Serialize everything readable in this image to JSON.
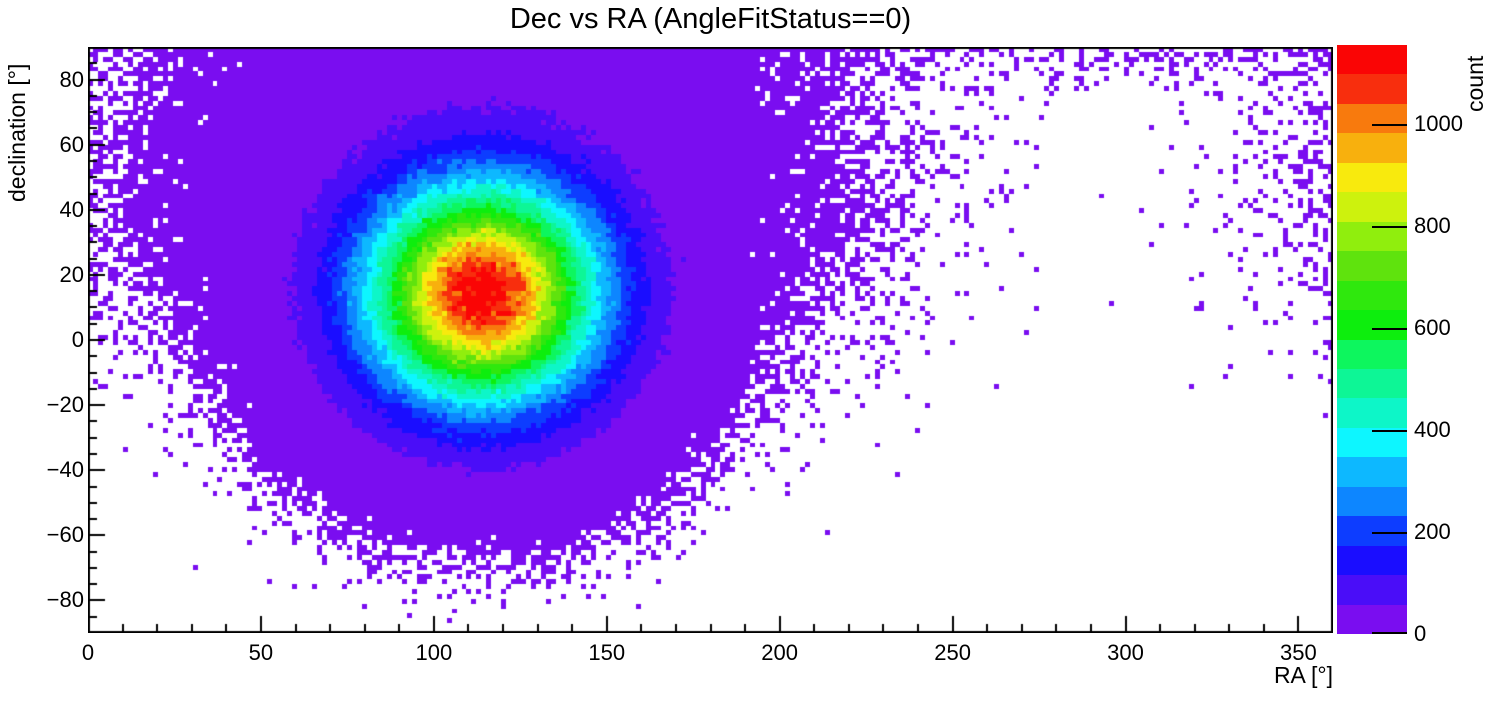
{
  "chart_data": {
    "type": "heatmap",
    "title": "Dec vs RA (AngleFitStatus==0)",
    "xlabel": "RA [°]",
    "ylabel": "declination [°]",
    "zlabel": "count",
    "x_range": [
      0,
      360
    ],
    "y_range": [
      -90,
      90
    ],
    "z_range": [
      0,
      1155
    ],
    "x_major_ticks": [
      0,
      50,
      100,
      150,
      200,
      250,
      300,
      350
    ],
    "x_major_labels": [
      "0",
      "50",
      "100",
      "150",
      "200",
      "250",
      "300",
      "350"
    ],
    "x_minor_step": 10,
    "y_major_ticks": [
      -80,
      -60,
      -40,
      -20,
      0,
      20,
      40,
      60,
      80
    ],
    "y_major_labels": [
      "−80",
      "−60",
      "−40",
      "−20",
      "0",
      "20",
      "40",
      "60",
      "80"
    ],
    "y_minor_step": 5,
    "z_major_ticks": [
      0,
      200,
      400,
      600,
      800,
      1000
    ],
    "z_major_labels": [
      "0",
      "200",
      "400",
      "600",
      "800",
      "1000"
    ],
    "n_levels": 20,
    "palette": [
      "#7a0df0",
      "#4a0df8",
      "#1a0dff",
      "#0d3dff",
      "#0d86ff",
      "#0db8ff",
      "#0df6ff",
      "#0df6c8",
      "#0df696",
      "#0df65e",
      "#0dee0d",
      "#2fe80d",
      "#5fe30d",
      "#90ee0d",
      "#cdf20d",
      "#f8ea0d",
      "#f8b00d",
      "#f87a0d",
      "#f82e0d",
      "#fa0505"
    ],
    "frame_color": "#000000",
    "background_color": "#ffffff",
    "bins": {
      "nx": 250,
      "ny": 120
    },
    "distribution": {
      "seed": 1896,
      "note": "counts per bin sampled as Poisson(lambda); zero-count bins left white",
      "components": [
        {
          "kind": "gaussian2d",
          "amplitude": 1148,
          "center_ra": 114,
          "center_dec": 14,
          "sigma_ra": 22,
          "sigma_dec": 22
        },
        {
          "kind": "gaussian2d",
          "amplitude": 28,
          "center_ra": 115,
          "center_dec": 50,
          "sigma_ra": 42,
          "sigma_dec": 28
        },
        {
          "kind": "polar_cap",
          "amplitude": 0.5,
          "center_dec": 90,
          "sigma_dec": 8
        }
      ]
    }
  }
}
